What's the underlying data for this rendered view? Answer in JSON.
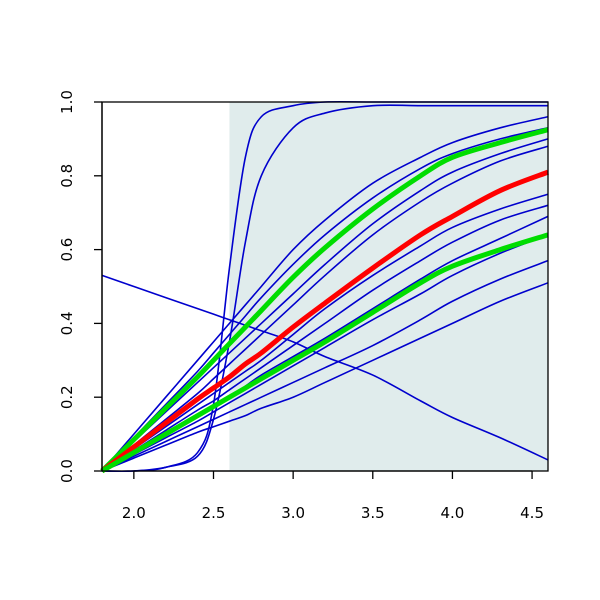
{
  "chart_data": {
    "type": "line",
    "title": "",
    "xlabel": "",
    "ylabel": "",
    "xlim": [
      1.8,
      4.6
    ],
    "ylim": [
      0.0,
      1.0
    ],
    "x_ticks": [
      "2.0",
      "2.5",
      "3.0",
      "3.5",
      "4.0",
      "4.5"
    ],
    "y_ticks": [
      "0.0",
      "0.2",
      "0.4",
      "0.6",
      "0.8",
      "1.0"
    ],
    "shaded_region": {
      "x_from": 2.6,
      "x_to": 4.6,
      "color": "#e0ecec"
    },
    "colors": {
      "blue": "#0000cd",
      "red": "#ff0000",
      "green": "#00dd00",
      "axis": "#000000"
    },
    "x": [
      1.8,
      2.0,
      2.2,
      2.4,
      2.5,
      2.6,
      2.7,
      2.8,
      3.0,
      3.2,
      3.5,
      3.8,
      4.0,
      4.3,
      4.6
    ],
    "series": [
      {
        "color": "blue",
        "width": "thin",
        "values": [
          0.0,
          0.0,
          0.01,
          0.05,
          0.18,
          0.55,
          0.85,
          0.96,
          0.99,
          1.0,
          1.0,
          1.0,
          1.0,
          1.0,
          1.0
        ]
      },
      {
        "color": "blue",
        "width": "thin",
        "values": [
          0.0,
          0.0,
          0.01,
          0.04,
          0.14,
          0.35,
          0.62,
          0.8,
          0.93,
          0.97,
          0.99,
          0.99,
          0.99,
          0.99,
          0.99
        ]
      },
      {
        "color": "blue",
        "width": "thin",
        "values": [
          0.0,
          0.1,
          0.2,
          0.3,
          0.35,
          0.4,
          0.45,
          0.5,
          0.6,
          0.68,
          0.78,
          0.85,
          0.89,
          0.93,
          0.96
        ]
      },
      {
        "color": "blue",
        "width": "thin",
        "values": [
          0.0,
          0.09,
          0.18,
          0.27,
          0.32,
          0.37,
          0.42,
          0.47,
          0.56,
          0.64,
          0.74,
          0.82,
          0.86,
          0.9,
          0.93
        ]
      },
      {
        "color": "blue",
        "width": "thin",
        "values": [
          0.0,
          0.08,
          0.16,
          0.24,
          0.28,
          0.32,
          0.36,
          0.4,
          0.48,
          0.56,
          0.67,
          0.76,
          0.81,
          0.86,
          0.9
        ]
      },
      {
        "color": "blue",
        "width": "thin",
        "values": [
          0.0,
          0.07,
          0.14,
          0.21,
          0.25,
          0.29,
          0.33,
          0.37,
          0.45,
          0.53,
          0.64,
          0.73,
          0.78,
          0.84,
          0.88
        ]
      },
      {
        "color": "blue",
        "width": "thin",
        "values": [
          0.0,
          0.06,
          0.12,
          0.18,
          0.21,
          0.24,
          0.27,
          0.3,
          0.37,
          0.44,
          0.53,
          0.61,
          0.66,
          0.71,
          0.75
        ]
      },
      {
        "color": "blue",
        "width": "thin",
        "values": [
          0.0,
          0.055,
          0.11,
          0.165,
          0.19,
          0.22,
          0.25,
          0.28,
          0.34,
          0.4,
          0.49,
          0.57,
          0.62,
          0.68,
          0.72
        ]
      },
      {
        "color": "blue",
        "width": "thin",
        "values": [
          0.0,
          0.05,
          0.1,
          0.15,
          0.175,
          0.2,
          0.23,
          0.26,
          0.31,
          0.36,
          0.44,
          0.52,
          0.57,
          0.63,
          0.69
        ]
      },
      {
        "color": "blue",
        "width": "thin",
        "values": [
          0.0,
          0.045,
          0.09,
          0.135,
          0.16,
          0.185,
          0.21,
          0.235,
          0.285,
          0.335,
          0.41,
          0.48,
          0.53,
          0.59,
          0.64
        ]
      },
      {
        "color": "blue",
        "width": "thin",
        "values": [
          0.0,
          0.04,
          0.08,
          0.12,
          0.14,
          0.16,
          0.18,
          0.2,
          0.24,
          0.28,
          0.34,
          0.41,
          0.46,
          0.52,
          0.57
        ]
      },
      {
        "color": "blue",
        "width": "thin",
        "values": [
          0.0,
          0.035,
          0.07,
          0.105,
          0.12,
          0.135,
          0.15,
          0.17,
          0.2,
          0.24,
          0.3,
          0.36,
          0.4,
          0.46,
          0.51
        ]
      },
      {
        "color": "blue",
        "width": "thin",
        "values": [
          0.53,
          0.5,
          0.47,
          0.44,
          0.425,
          0.41,
          0.395,
          0.38,
          0.35,
          0.31,
          0.26,
          0.19,
          0.145,
          0.09,
          0.03
        ]
      },
      {
        "color": "green",
        "width": "thick",
        "values": [
          0.0,
          0.085,
          0.17,
          0.255,
          0.3,
          0.345,
          0.39,
          0.435,
          0.525,
          0.605,
          0.71,
          0.8,
          0.85,
          0.89,
          0.925
        ]
      },
      {
        "color": "red",
        "width": "thick",
        "values": [
          0.0,
          0.065,
          0.13,
          0.195,
          0.225,
          0.255,
          0.29,
          0.32,
          0.39,
          0.455,
          0.55,
          0.64,
          0.69,
          0.76,
          0.81
        ]
      },
      {
        "color": "green",
        "width": "thick",
        "values": [
          0.0,
          0.05,
          0.1,
          0.15,
          0.175,
          0.2,
          0.225,
          0.25,
          0.3,
          0.35,
          0.43,
          0.51,
          0.555,
          0.6,
          0.64
        ]
      }
    ]
  }
}
